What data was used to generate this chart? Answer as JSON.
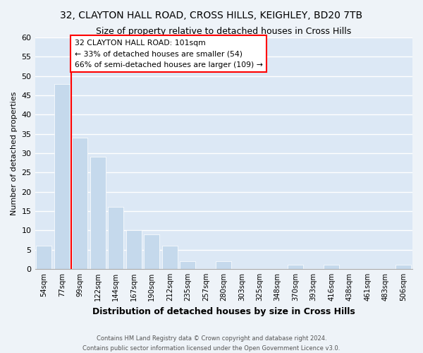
{
  "title": "32, CLAYTON HALL ROAD, CROSS HILLS, KEIGHLEY, BD20 7TB",
  "subtitle": "Size of property relative to detached houses in Cross Hills",
  "xlabel": "Distribution of detached houses by size in Cross Hills",
  "ylabel": "Number of detached properties",
  "bar_labels": [
    "54sqm",
    "77sqm",
    "99sqm",
    "122sqm",
    "144sqm",
    "167sqm",
    "190sqm",
    "212sqm",
    "235sqm",
    "257sqm",
    "280sqm",
    "303sqm",
    "325sqm",
    "348sqm",
    "370sqm",
    "393sqm",
    "416sqm",
    "438sqm",
    "461sqm",
    "483sqm",
    "506sqm"
  ],
  "bar_values": [
    6,
    48,
    34,
    29,
    16,
    10,
    9,
    6,
    2,
    0,
    2,
    0,
    0,
    0,
    1,
    0,
    1,
    0,
    0,
    0,
    1
  ],
  "bar_color": "#c5d9ec",
  "grid_color": "#ffffff",
  "bg_color": "#dce8f5",
  "fig_bg_color": "#eef3f8",
  "ylim": [
    0,
    60
  ],
  "yticks": [
    0,
    5,
    10,
    15,
    20,
    25,
    30,
    35,
    40,
    45,
    50,
    55,
    60
  ],
  "property_line_label": "32 CLAYTON HALL ROAD: 101sqm",
  "annotation_line1": "← 33% of detached houses are smaller (54)",
  "annotation_line2": "66% of semi-detached houses are larger (109) →",
  "footer1": "Contains HM Land Registry data © Crown copyright and database right 2024.",
  "footer2": "Contains public sector information licensed under the Open Government Licence v3.0."
}
